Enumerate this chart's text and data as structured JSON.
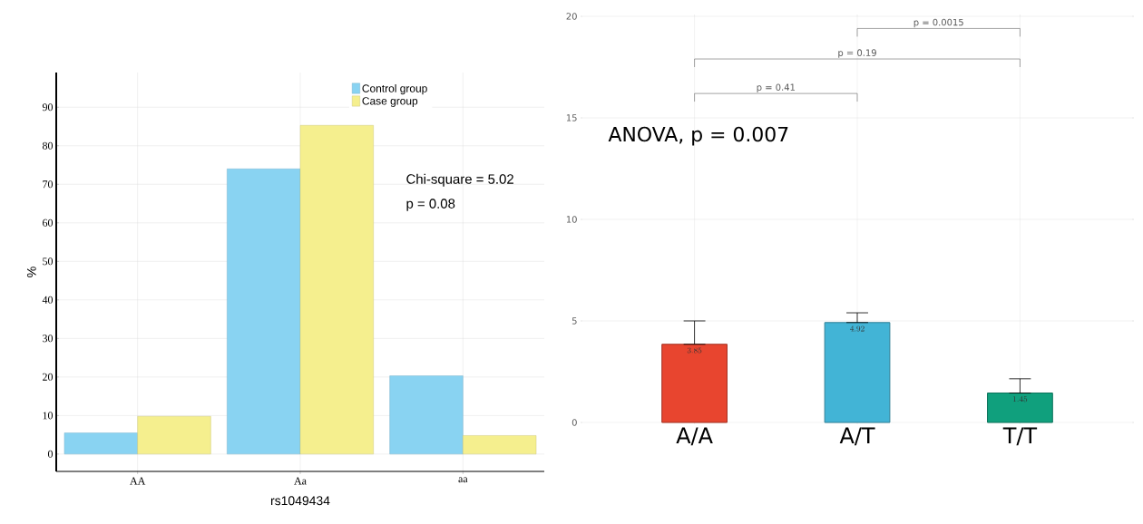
{
  "chart_data": [
    {
      "type": "bar",
      "categories": [
        "AA",
        "Aa",
        "aa"
      ],
      "xlabel": "rs1049434",
      "ylabel": "%",
      "series": [
        {
          "name": "Control group",
          "color": "#89d3f2",
          "values": [
            5.5,
            74,
            20.3
          ]
        },
        {
          "name": "Case group",
          "color": "#f5ef8e",
          "values": [
            9.8,
            85.3,
            4.8
          ]
        }
      ],
      "ylim": [
        -4.5,
        99
      ],
      "yticks": [
        0,
        10,
        20,
        30,
        40,
        50,
        60,
        70,
        80,
        90
      ],
      "grid": true,
      "legend": "top right",
      "annotations": [
        "Chi-square = 5.02",
        "p = 0.08"
      ]
    },
    {
      "type": "bar",
      "categories": [
        "A/A",
        "A/T",
        "T/T"
      ],
      "values": [
        3.85,
        4.92,
        1.45
      ],
      "colors": [
        "#e8452f",
        "#42b4d6",
        "#10a07d"
      ],
      "errors": [
        [
          3.85,
          5.0
        ],
        [
          4.92,
          5.4
        ],
        [
          1.45,
          2.15
        ]
      ],
      "data_labels": true,
      "ylim": [
        0,
        20
      ],
      "yticks": [
        0,
        5,
        10,
        15,
        20
      ],
      "grid": true,
      "annotations": [
        "ANOVA, p = 0.007",
        "p = 0.41",
        "p = 0.19",
        "p = 0.0015"
      ]
    }
  ]
}
